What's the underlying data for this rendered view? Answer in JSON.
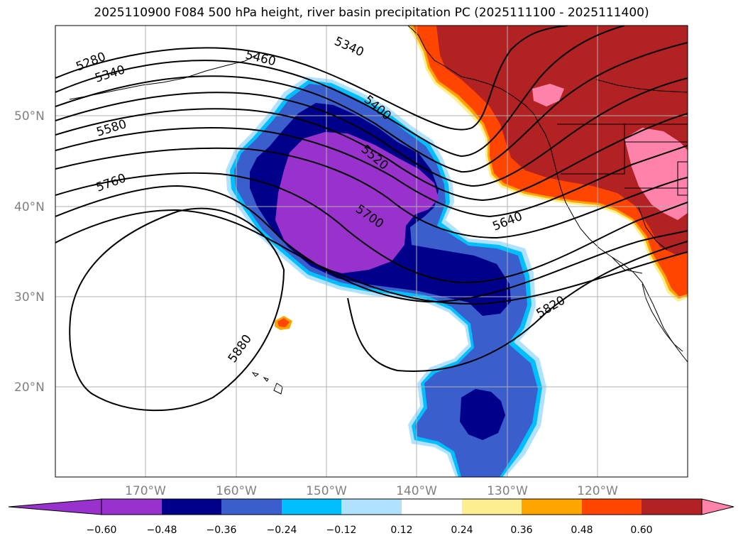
{
  "title": "2025110900 F084 500 hPa height, river basin precipitation PC (2025111100 - 2025111400)",
  "colors": {
    "purple": "#9932cc",
    "navy": "#00008b",
    "royal": "#3a5fcd",
    "sky": "#00bfff",
    "paleblue": "#b0e2ff",
    "white": "#ffffff",
    "paleyellow": "#fdee90",
    "orange": "#ffa500",
    "redorange": "#ff4500",
    "darkred": "#b22222",
    "pink": "#ff82ab",
    "grid": "#b0b0b0",
    "tick": "#808080"
  },
  "lat_labels": [
    "50°N",
    "40°N",
    "30°N",
    "20°N"
  ],
  "lon_labels": [
    "170°W",
    "160°W",
    "150°W",
    "140°W",
    "130°W",
    "120°W"
  ],
  "colorbar": {
    "ticks": [
      "−0.60",
      "−0.48",
      "−0.36",
      "−0.24",
      "−0.12",
      "0.12",
      "0.24",
      "0.36",
      "0.48",
      "0.60"
    ]
  },
  "contour_labels": [
    "5280",
    "5340",
    "5340",
    "5460",
    "5400",
    "5520",
    "5580",
    "5700",
    "5760",
    "5640",
    "5820",
    "5880"
  ]
}
